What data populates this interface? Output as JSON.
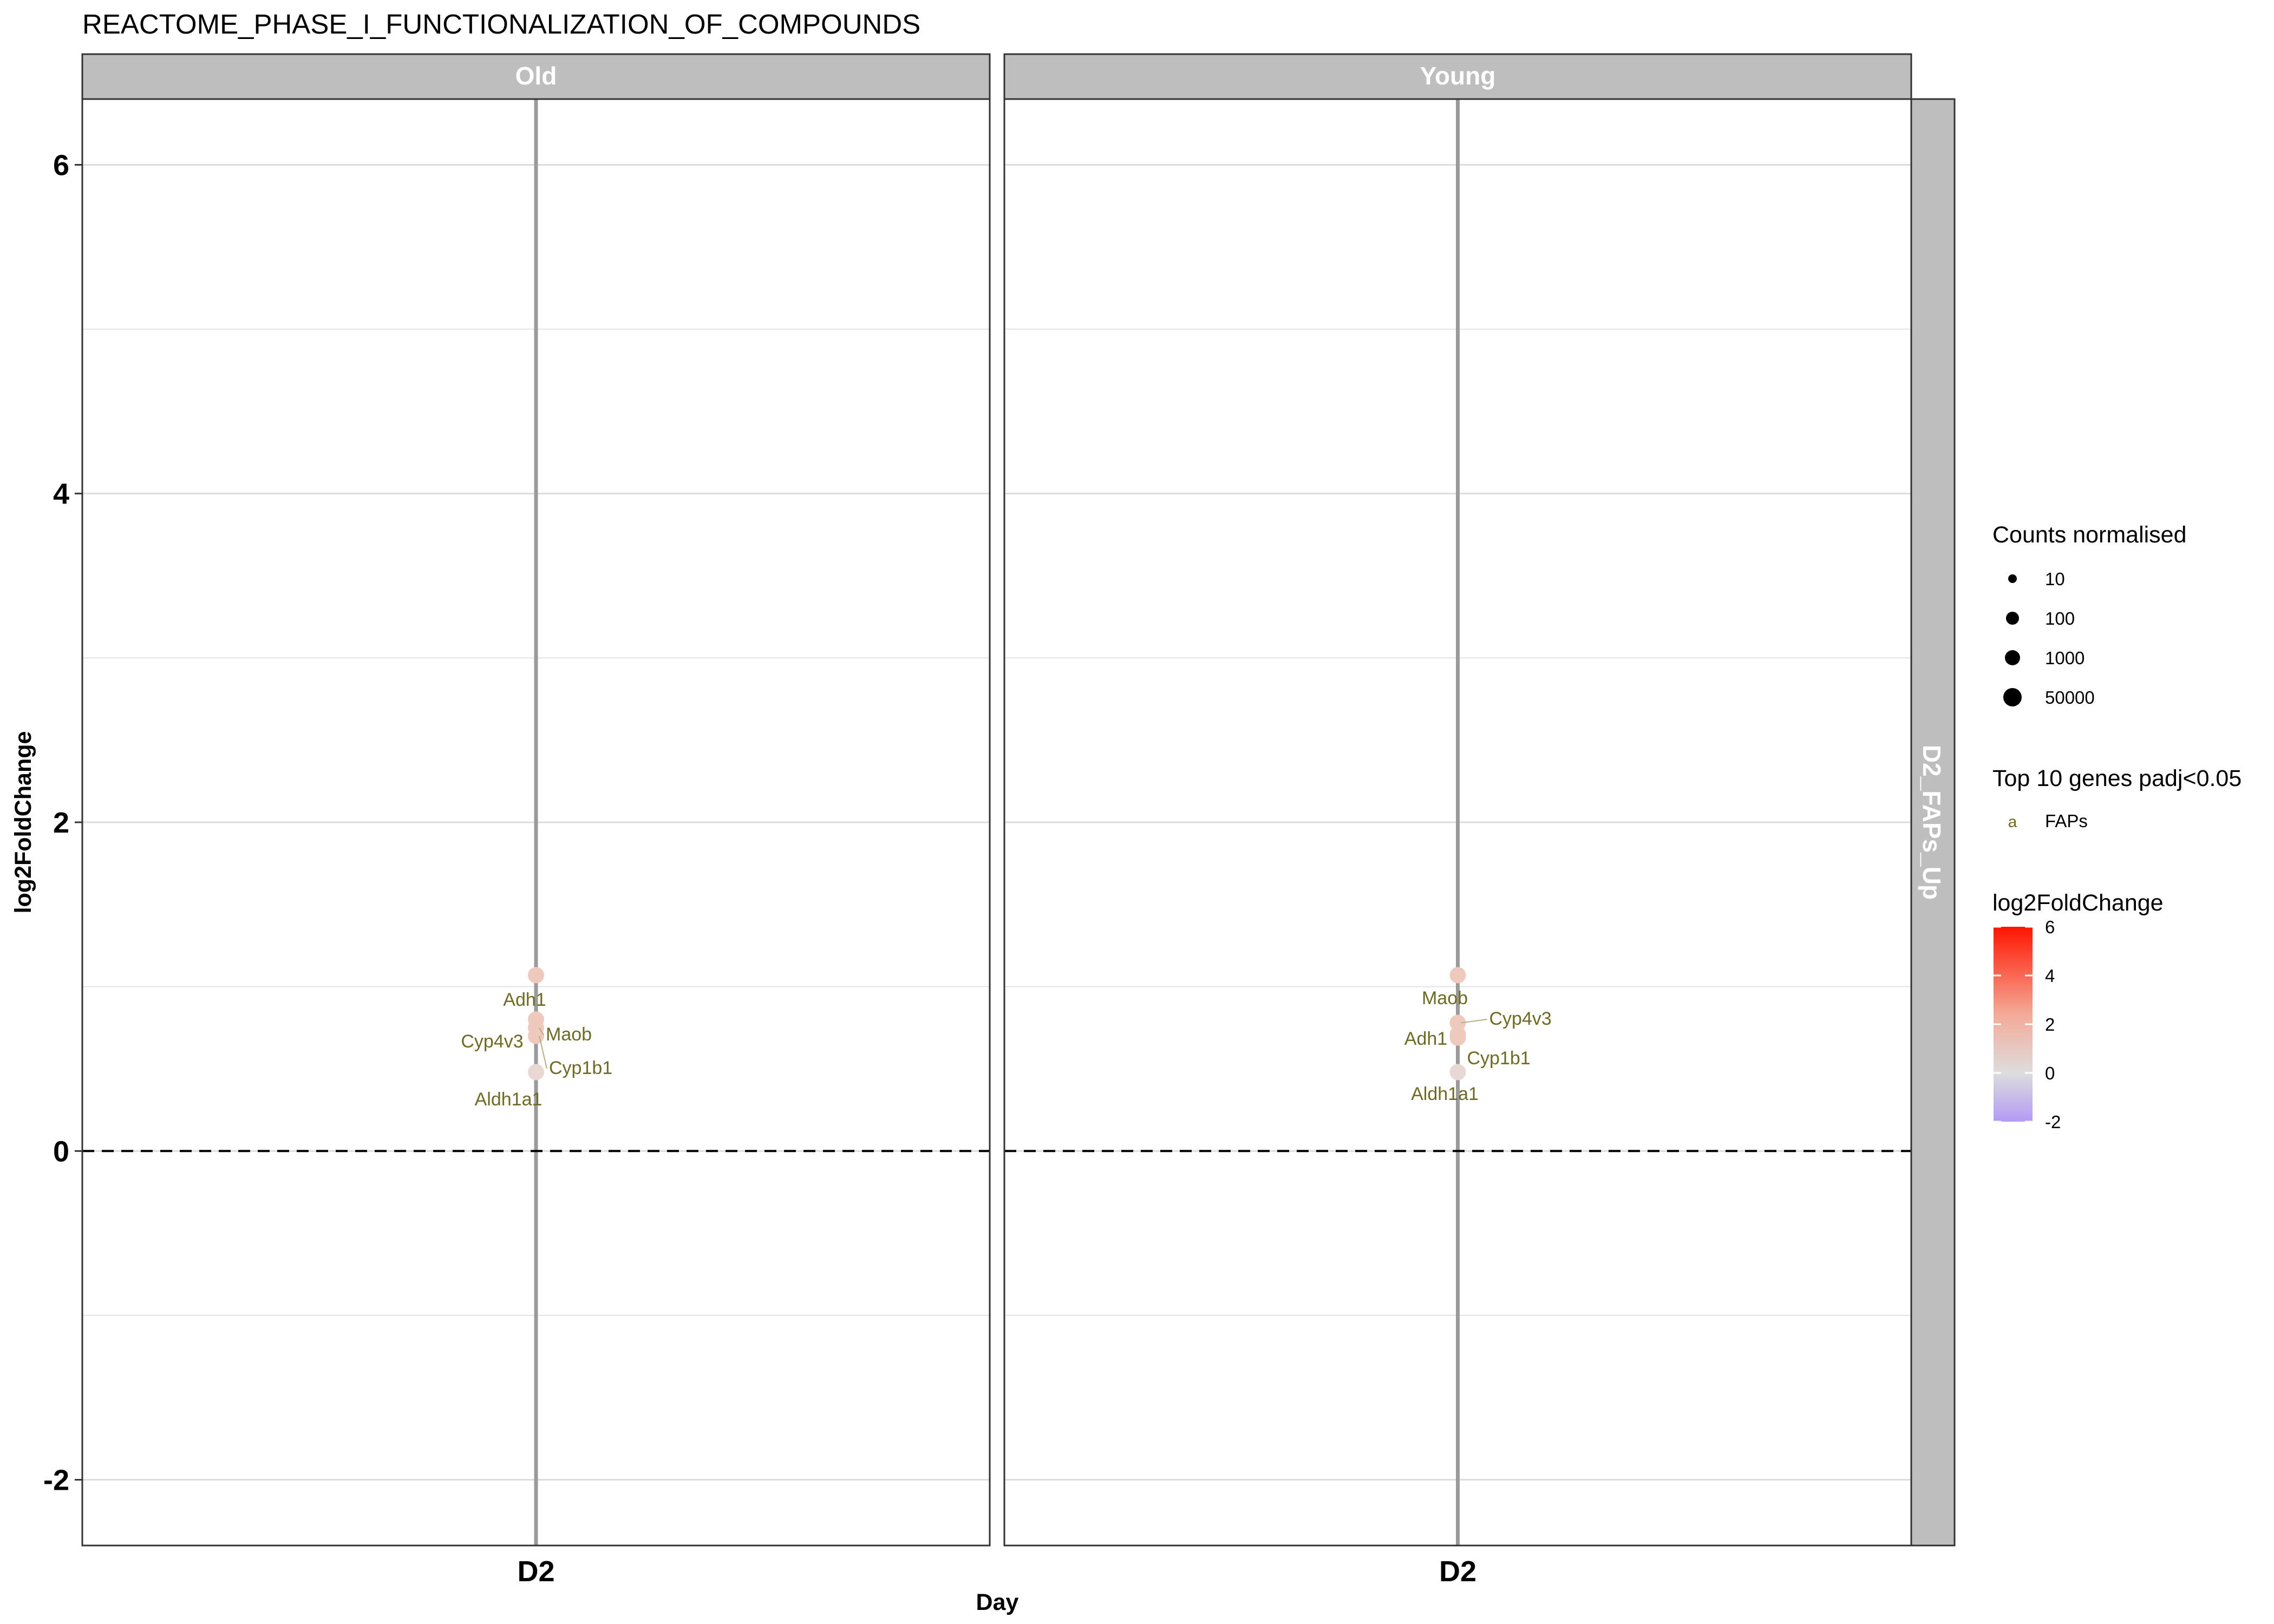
{
  "chart_data": {
    "type": "scatter",
    "title": "REACTOME_PHASE_I_FUNCTIONALIZATION_OF_COMPOUNDS",
    "xlabel": "Day",
    "ylabel": "log2FoldChange",
    "facets_columns": [
      "Old",
      "Young"
    ],
    "facet_row": "D2_FAPs_Up",
    "x_categories": [
      "D2"
    ],
    "ylim": [
      -2.4,
      6.4
    ],
    "y_ticks": [
      "-2",
      "0",
      "2",
      "4",
      "6"
    ],
    "y_tick_values": [
      -2,
      0,
      2,
      4,
      6
    ],
    "reference_line_y": 0,
    "grid": true,
    "panels": [
      {
        "facet": "Old",
        "points": [
          {
            "gene": "Adh1",
            "x": "D2",
            "y": 1.07
          },
          {
            "gene": "Cyp4v3",
            "x": "D2",
            "y": 0.8
          },
          {
            "gene": "Maob",
            "x": "D2",
            "y": 0.75
          },
          {
            "gene": "Cyp1b1",
            "x": "D2",
            "y": 0.7
          },
          {
            "gene": "Aldh1a1",
            "x": "D2",
            "y": 0.48
          }
        ],
        "labels": [
          "Adh1",
          "Cyp4v3",
          "Maob",
          "Cyp1b1",
          "Aldh1a1"
        ]
      },
      {
        "facet": "Young",
        "points": [
          {
            "gene": "Maob",
            "x": "D2",
            "y": 1.07
          },
          {
            "gene": "Cyp4v3",
            "x": "D2",
            "y": 0.78
          },
          {
            "gene": "Adh1",
            "x": "D2",
            "y": 0.71
          },
          {
            "gene": "Cyp1b1",
            "x": "D2",
            "y": 0.69
          },
          {
            "gene": "Aldh1a1",
            "x": "D2",
            "y": 0.48
          }
        ],
        "labels": [
          "Maob",
          "Cyp4v3",
          "Adh1",
          "Cyp1b1",
          "Aldh1a1"
        ]
      }
    ],
    "legend": {
      "placement": "right",
      "size_title": "Counts normalised",
      "size_items": [
        "10",
        "100",
        "1000",
        "50000"
      ],
      "label_title": "Top 10 genes padj<0.05",
      "label_key": "a",
      "label_item": "FAPs",
      "color_title": "log2FoldChange",
      "color_ticks": [
        "6",
        "4",
        "2",
        "0",
        "-2"
      ],
      "color_tick_values": [
        6,
        4,
        2,
        0,
        -2
      ],
      "color_range": [
        -2,
        6
      ],
      "color_low": "#b39af5",
      "color_mid": "#dddddd",
      "color_high": "#ff1500"
    }
  },
  "colors": {
    "strip": "#bebebe",
    "stem": "#9a9a9a",
    "grid": "#dcdcdc",
    "label_text": "#6e6a1f",
    "point_high": "#f0c9bd",
    "point_low": "#e8d8d3"
  }
}
